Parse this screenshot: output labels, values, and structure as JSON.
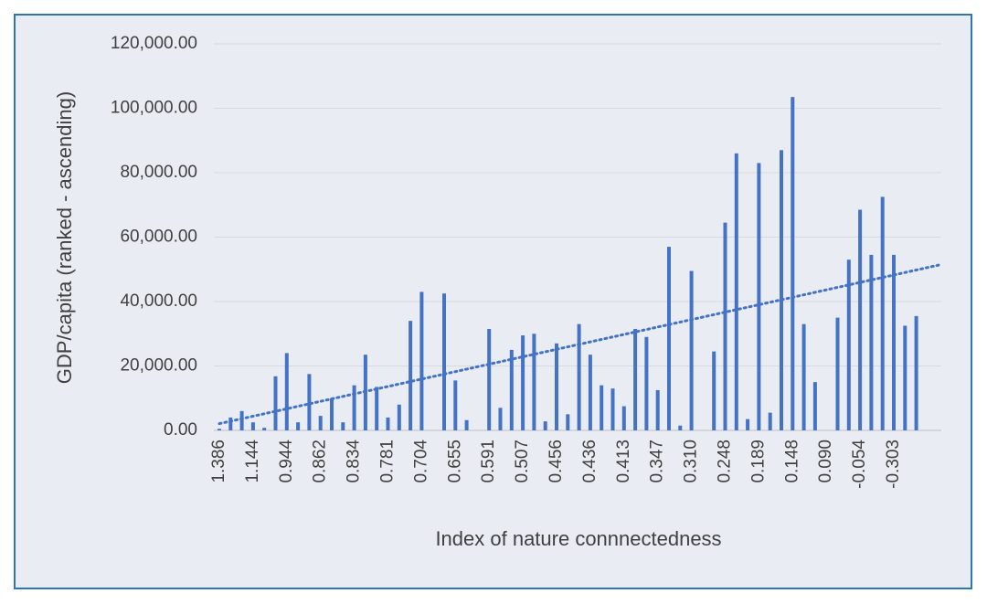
{
  "chart_data": {
    "type": "bar",
    "x_label": "Index of nature connnectedness",
    "y_label": "GDP/capita (ranked - ascending)",
    "color": "#4472c4",
    "trendline": true,
    "grid": true,
    "categories": [
      "1.386",
      null,
      null,
      "1.144",
      null,
      null,
      "0.944",
      null,
      null,
      "0.862",
      null,
      null,
      "0.834",
      null,
      null,
      "0.781",
      null,
      null,
      "0.704",
      null,
      null,
      "0.655",
      null,
      null,
      "0.591",
      null,
      null,
      "0.507",
      null,
      null,
      "0.456",
      null,
      null,
      "0.436",
      null,
      null,
      "0.413",
      null,
      null,
      "0.347",
      null,
      null,
      "0.310",
      null,
      null,
      "0.248",
      null,
      null,
      "0.189",
      null,
      null,
      "0.148",
      null,
      null,
      "0.090",
      null,
      null,
      "-0.054",
      null,
      null,
      "-0.303",
      null,
      null
    ],
    "values": [
      500,
      4000,
      6000,
      2500,
      800,
      16800,
      24000,
      2500,
      17500,
      4500,
      10000,
      2500,
      14000,
      23500,
      13500,
      4000,
      8000,
      34000,
      43000,
      0,
      42500,
      15500,
      3200,
      0,
      31500,
      7000,
      25000,
      29500,
      30000,
      2800,
      27000,
      5000,
      33000,
      23500,
      14000,
      13000,
      7500,
      31500,
      29000,
      12500,
      57000,
      1500,
      49500,
      0,
      24500,
      64500,
      86000,
      3500,
      83000,
      5500,
      87000,
      103500,
      33000,
      15000,
      0,
      35000,
      53000,
      68500,
      54500,
      72500,
      54500,
      32500,
      35500
    ],
    "ylim": [
      0,
      120000
    ],
    "yticks": [
      {
        "value": 0,
        "label": "0.00"
      },
      {
        "value": 20000,
        "label": "20,000.00"
      },
      {
        "value": 40000,
        "label": "40,000.00"
      },
      {
        "value": 60000,
        "label": "60,000.00"
      },
      {
        "value": 80000,
        "label": "80,000.00"
      },
      {
        "value": 100000,
        "label": "100,000.00"
      },
      {
        "value": 120000,
        "label": "120,000.00"
      }
    ]
  }
}
